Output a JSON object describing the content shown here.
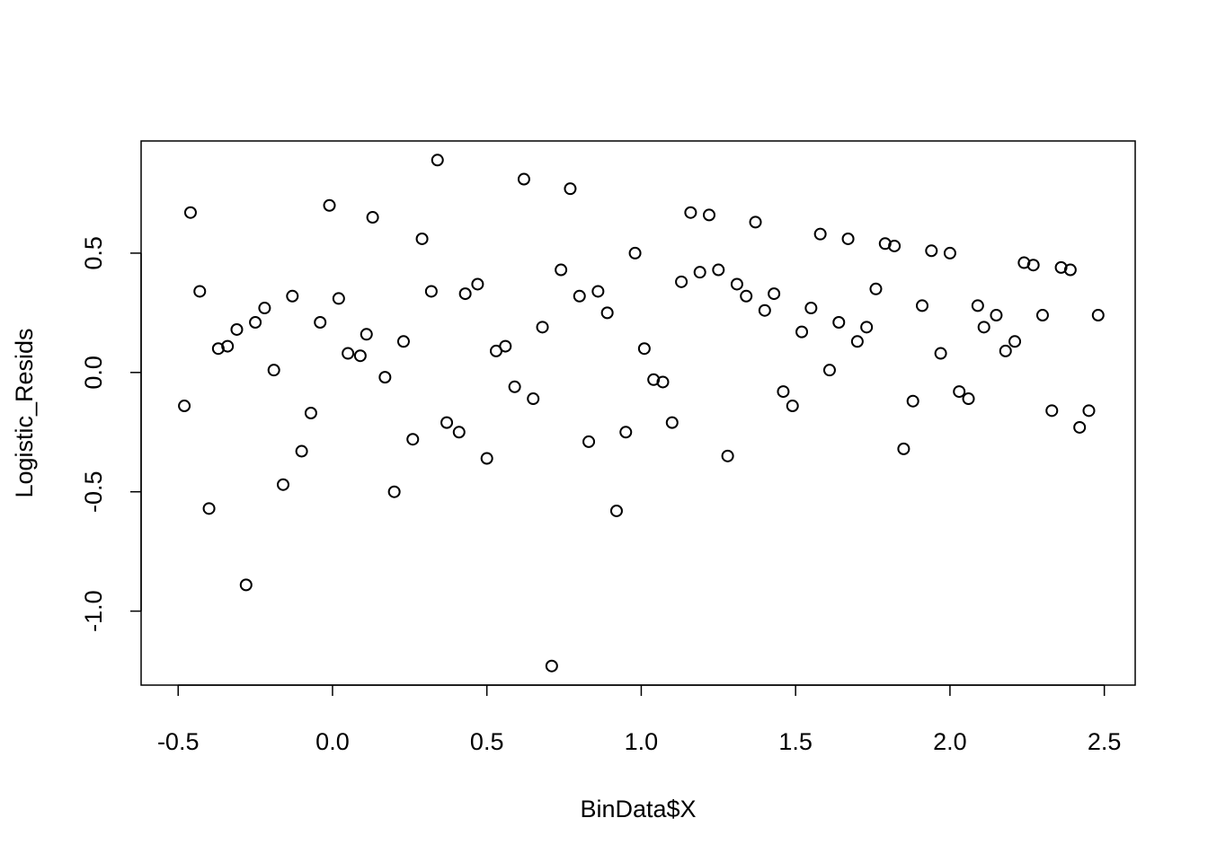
{
  "chart_data": {
    "type": "scatter",
    "title": "",
    "xlabel": "BinData$X",
    "ylabel": "Logistic_Resids",
    "xlim": [
      -0.62,
      2.6
    ],
    "ylim": [
      -1.31,
      0.97
    ],
    "x_ticks": [
      {
        "value": -0.5,
        "label": "-0.5"
      },
      {
        "value": 0.0,
        "label": "0.0"
      },
      {
        "value": 0.5,
        "label": "0.5"
      },
      {
        "value": 1.0,
        "label": "1.0"
      },
      {
        "value": 1.5,
        "label": "1.5"
      },
      {
        "value": 2.0,
        "label": "2.0"
      },
      {
        "value": 2.5,
        "label": "2.5"
      }
    ],
    "y_ticks": [
      {
        "value": -1.0,
        "label": "-1.0"
      },
      {
        "value": -0.5,
        "label": "-0.5"
      },
      {
        "value": 0.0,
        "label": "0.0"
      },
      {
        "value": 0.5,
        "label": "0.5"
      }
    ],
    "grid": false,
    "legend": "none",
    "marker": "open-circle",
    "color": "#000000",
    "points": [
      {
        "x": -0.48,
        "y": -0.14
      },
      {
        "x": -0.46,
        "y": 0.67
      },
      {
        "x": -0.43,
        "y": 0.34
      },
      {
        "x": -0.4,
        "y": -0.57
      },
      {
        "x": -0.37,
        "y": 0.1
      },
      {
        "x": -0.34,
        "y": 0.11
      },
      {
        "x": -0.31,
        "y": 0.18
      },
      {
        "x": -0.28,
        "y": -0.89
      },
      {
        "x": -0.25,
        "y": 0.21
      },
      {
        "x": -0.22,
        "y": 0.27
      },
      {
        "x": -0.19,
        "y": 0.01
      },
      {
        "x": -0.16,
        "y": -0.47
      },
      {
        "x": -0.13,
        "y": 0.32
      },
      {
        "x": -0.1,
        "y": -0.33
      },
      {
        "x": -0.07,
        "y": -0.17
      },
      {
        "x": -0.04,
        "y": 0.21
      },
      {
        "x": -0.01,
        "y": 0.7
      },
      {
        "x": 0.02,
        "y": 0.31
      },
      {
        "x": 0.05,
        "y": 0.08
      },
      {
        "x": 0.09,
        "y": 0.07
      },
      {
        "x": 0.11,
        "y": 0.16
      },
      {
        "x": 0.13,
        "y": 0.65
      },
      {
        "x": 0.17,
        "y": -0.02
      },
      {
        "x": 0.2,
        "y": -0.5
      },
      {
        "x": 0.23,
        "y": 0.13
      },
      {
        "x": 0.26,
        "y": -0.28
      },
      {
        "x": 0.29,
        "y": 0.56
      },
      {
        "x": 0.32,
        "y": 0.34
      },
      {
        "x": 0.34,
        "y": 0.89
      },
      {
        "x": 0.37,
        "y": -0.21
      },
      {
        "x": 0.41,
        "y": -0.25
      },
      {
        "x": 0.43,
        "y": 0.33
      },
      {
        "x": 0.47,
        "y": 0.37
      },
      {
        "x": 0.5,
        "y": -0.36
      },
      {
        "x": 0.53,
        "y": 0.09
      },
      {
        "x": 0.56,
        "y": 0.11
      },
      {
        "x": 0.59,
        "y": -0.06
      },
      {
        "x": 0.62,
        "y": 0.81
      },
      {
        "x": 0.65,
        "y": -0.11
      },
      {
        "x": 0.68,
        "y": 0.19
      },
      {
        "x": 0.71,
        "y": -1.23
      },
      {
        "x": 0.74,
        "y": 0.43
      },
      {
        "x": 0.77,
        "y": 0.77
      },
      {
        "x": 0.8,
        "y": 0.32
      },
      {
        "x": 0.83,
        "y": -0.29
      },
      {
        "x": 0.86,
        "y": 0.34
      },
      {
        "x": 0.89,
        "y": 0.25
      },
      {
        "x": 0.92,
        "y": -0.58
      },
      {
        "x": 0.95,
        "y": -0.25
      },
      {
        "x": 0.98,
        "y": 0.5
      },
      {
        "x": 1.01,
        "y": 0.1
      },
      {
        "x": 1.04,
        "y": -0.03
      },
      {
        "x": 1.07,
        "y": -0.04
      },
      {
        "x": 1.1,
        "y": -0.21
      },
      {
        "x": 1.13,
        "y": 0.38
      },
      {
        "x": 1.16,
        "y": 0.67
      },
      {
        "x": 1.19,
        "y": 0.42
      },
      {
        "x": 1.22,
        "y": 0.66
      },
      {
        "x": 1.25,
        "y": 0.43
      },
      {
        "x": 1.28,
        "y": -0.35
      },
      {
        "x": 1.31,
        "y": 0.37
      },
      {
        "x": 1.34,
        "y": 0.32
      },
      {
        "x": 1.37,
        "y": 0.63
      },
      {
        "x": 1.4,
        "y": 0.26
      },
      {
        "x": 1.43,
        "y": 0.33
      },
      {
        "x": 1.46,
        "y": -0.08
      },
      {
        "x": 1.49,
        "y": -0.14
      },
      {
        "x": 1.52,
        "y": 0.17
      },
      {
        "x": 1.55,
        "y": 0.27
      },
      {
        "x": 1.58,
        "y": 0.58
      },
      {
        "x": 1.61,
        "y": 0.01
      },
      {
        "x": 1.64,
        "y": 0.21
      },
      {
        "x": 1.67,
        "y": 0.56
      },
      {
        "x": 1.7,
        "y": 0.13
      },
      {
        "x": 1.73,
        "y": 0.19
      },
      {
        "x": 1.76,
        "y": 0.35
      },
      {
        "x": 1.79,
        "y": 0.54
      },
      {
        "x": 1.82,
        "y": 0.53
      },
      {
        "x": 1.85,
        "y": -0.32
      },
      {
        "x": 1.88,
        "y": -0.12
      },
      {
        "x": 1.91,
        "y": 0.28
      },
      {
        "x": 1.94,
        "y": 0.51
      },
      {
        "x": 1.97,
        "y": 0.08
      },
      {
        "x": 2.0,
        "y": 0.5
      },
      {
        "x": 2.03,
        "y": -0.08
      },
      {
        "x": 2.06,
        "y": -0.11
      },
      {
        "x": 2.09,
        "y": 0.28
      },
      {
        "x": 2.11,
        "y": 0.19
      },
      {
        "x": 2.15,
        "y": 0.24
      },
      {
        "x": 2.18,
        "y": 0.09
      },
      {
        "x": 2.21,
        "y": 0.13
      },
      {
        "x": 2.24,
        "y": 0.46
      },
      {
        "x": 2.27,
        "y": 0.45
      },
      {
        "x": 2.3,
        "y": 0.24
      },
      {
        "x": 2.33,
        "y": -0.16
      },
      {
        "x": 2.36,
        "y": 0.44
      },
      {
        "x": 2.39,
        "y": 0.43
      },
      {
        "x": 2.42,
        "y": -0.23
      },
      {
        "x": 2.45,
        "y": -0.16
      },
      {
        "x": 2.48,
        "y": 0.24
      }
    ]
  }
}
